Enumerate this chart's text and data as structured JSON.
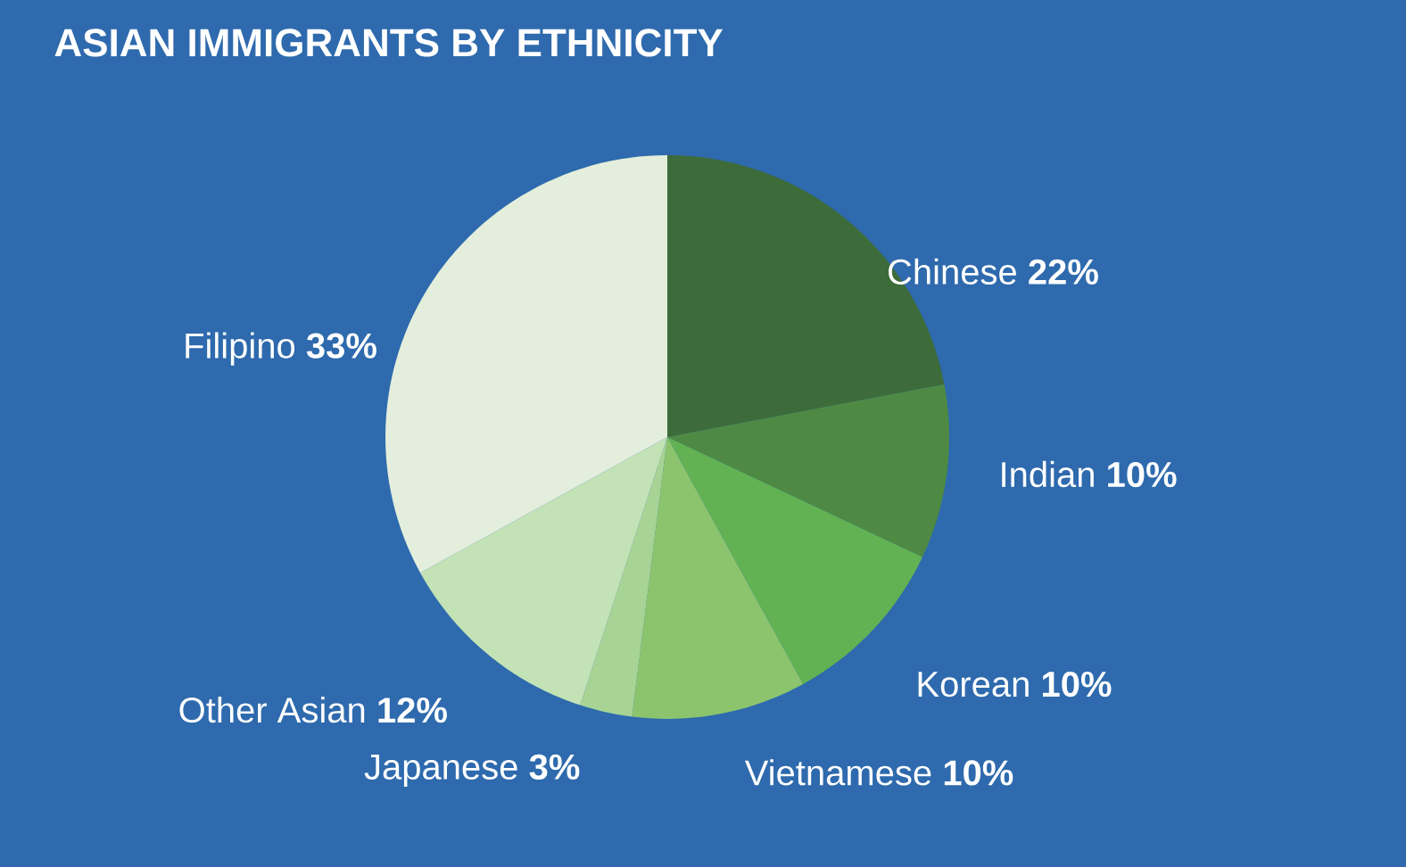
{
  "chart_data": {
    "type": "pie",
    "title": "ASIAN IMMIGRANTS BY ETHNICITY",
    "categories": [
      "Chinese",
      "Indian",
      "Korean",
      "Vietnamese",
      "Japanese",
      "Other Asian",
      "Filipino"
    ],
    "values": [
      22,
      10,
      10,
      10,
      3,
      12,
      33
    ],
    "value_labels": [
      "22%",
      "10%",
      "10%",
      "10%",
      "3%",
      "12%",
      "33%"
    ],
    "colors": [
      "#3d6b3a",
      "#4e8a43",
      "#62b254",
      "#8bc46d",
      "#a7d494",
      "#c3e2b5",
      "#e3eedc"
    ]
  }
}
